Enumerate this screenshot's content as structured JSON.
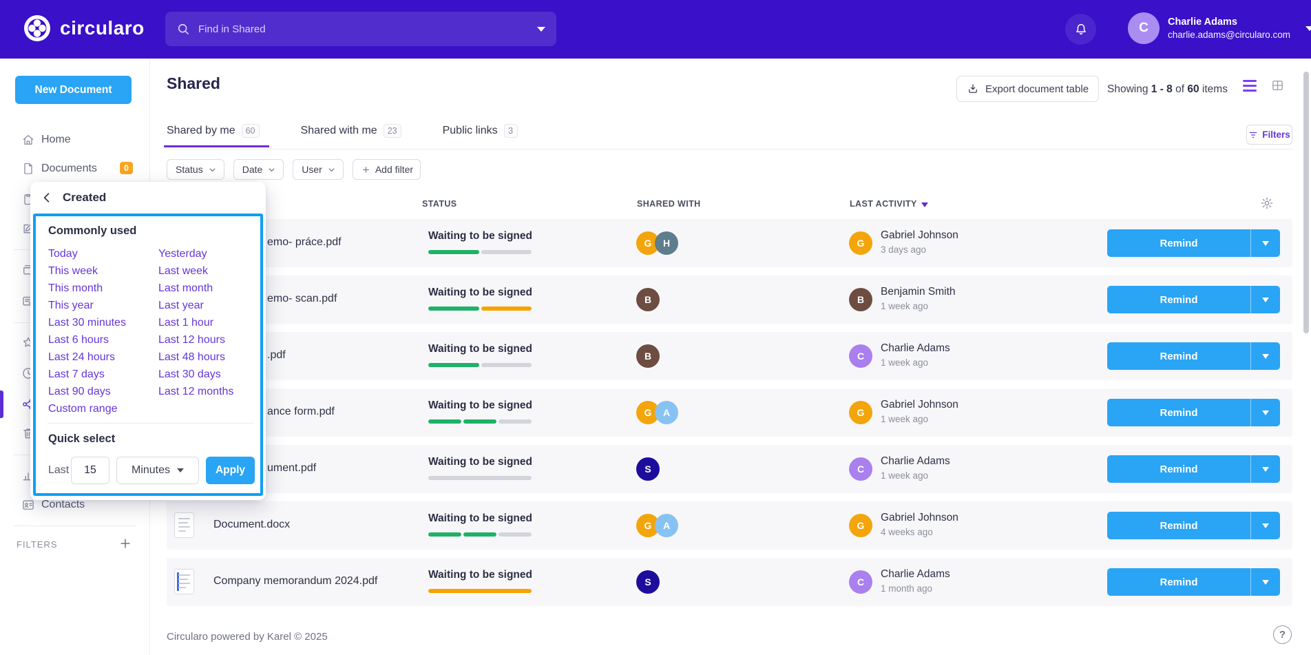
{
  "topbar": {
    "brand": "circularo",
    "search_placeholder": "Find in Shared",
    "user": {
      "initial": "C",
      "name": "Charlie Adams",
      "email": "charlie.adams@circularo.com"
    }
  },
  "sidebar": {
    "new_document": "New Document",
    "items": [
      {
        "icon": "home-icon",
        "label": "Home"
      },
      {
        "icon": "document-icon",
        "label": "Documents",
        "badge": "0"
      },
      {
        "icon": "clipboard-icon"
      },
      {
        "icon": "edit-icon"
      },
      {
        "divider": true
      },
      {
        "icon": "cards-icon"
      },
      {
        "icon": "card-at-icon"
      },
      {
        "divider": true
      },
      {
        "icon": "star-icon"
      },
      {
        "icon": "clock-icon"
      },
      {
        "icon": "share-icon",
        "active": true
      },
      {
        "icon": "trash-icon"
      },
      {
        "divider": true
      },
      {
        "icon": "chart-icon"
      },
      {
        "icon": "contacts-icon",
        "label": "Contacts"
      },
      {
        "divider": true
      }
    ],
    "filters_label": "FILTERS"
  },
  "page": {
    "title": "Shared",
    "export_label": "Export document table",
    "showing": {
      "prefix": "Showing",
      "range": "1 - 8",
      "of": "of",
      "total": "60",
      "suffix": "items"
    },
    "tabs": [
      {
        "label": "Shared by me",
        "count": "60",
        "active": true
      },
      {
        "label": "Shared with me",
        "count": "23",
        "active": false
      },
      {
        "label": "Public links",
        "count": "3",
        "active": false
      }
    ],
    "filters_button": "Filters",
    "filter_chips": [
      {
        "label": "Status"
      },
      {
        "label": "Date"
      },
      {
        "label": "User"
      }
    ],
    "add_filter_label": "Add filter"
  },
  "popup": {
    "title": "Created",
    "commonly_used": "Commonly used",
    "col1": [
      "Today",
      "This week",
      "This month",
      "This year",
      "Last 30 minutes",
      "Last 6 hours",
      "Last 24 hours",
      "Last 7 days",
      "Last 90 days",
      "Custom range"
    ],
    "col2": [
      "Yesterday",
      "Last week",
      "Last month",
      "Last year",
      "Last 1 hour",
      "Last 12 hours",
      "Last 48 hours",
      "Last 30 days",
      "Last 12 months"
    ],
    "quick_select": "Quick select",
    "last_label": "Last",
    "amount": "15",
    "unit": "Minutes",
    "apply_label": "Apply"
  },
  "table": {
    "headers": {
      "status": "STATUS",
      "shared_with": "SHARED WITH",
      "last_activity": "LAST ACTIVITY"
    },
    "status_colors": {
      "green": "#1fb168",
      "orange": "#f7a300",
      "gray": "#d3d5db"
    },
    "avatar_colors": {
      "gold": "#f3a50b",
      "slate": "#5e7d8d",
      "brown": "#6d4c41",
      "sky": "#87c3f2",
      "navy": "#1d0d9c",
      "purple": "#a980ee"
    },
    "rows": [
      {
        "name": "emo- práce.pdf",
        "icon": null,
        "status": "Waiting to be signed",
        "progress": [
          "green",
          "gray"
        ],
        "shared": [
          {
            "initial": "G",
            "color": "gold"
          },
          {
            "initial": "H",
            "color": "slate"
          }
        ],
        "activity": {
          "initial": "G",
          "color": "gold",
          "name": "Gabriel Johnson",
          "time": "3 days ago"
        },
        "action": "Remind"
      },
      {
        "name": "emo- scan.pdf",
        "icon": null,
        "status": "Waiting to be signed",
        "progress": [
          "green",
          "orange"
        ],
        "shared": [
          {
            "initial": "B",
            "color": "brown"
          }
        ],
        "activity": {
          "initial": "B",
          "color": "brown",
          "name": "Benjamin Smith",
          "time": "1 week ago"
        },
        "action": "Remind"
      },
      {
        "name": ".pdf",
        "icon": null,
        "status": "Waiting to be signed",
        "progress": [
          "green",
          "gray"
        ],
        "shared": [
          {
            "initial": "B",
            "color": "brown"
          }
        ],
        "activity": {
          "initial": "C",
          "color": "purple",
          "name": "Charlie Adams",
          "time": "1 week ago"
        },
        "action": "Remind"
      },
      {
        "name": "ance form.pdf",
        "icon": null,
        "status": "Waiting to be signed",
        "progress": [
          "green",
          "green",
          "gray"
        ],
        "shared": [
          {
            "initial": "G",
            "color": "gold"
          },
          {
            "initial": "A",
            "color": "sky"
          }
        ],
        "activity": {
          "initial": "G",
          "color": "gold",
          "name": "Gabriel Johnson",
          "time": "1 week ago"
        },
        "action": "Remind"
      },
      {
        "name": "ument.pdf",
        "icon": null,
        "status": "Waiting to be signed",
        "progress": [
          "gray"
        ],
        "shared": [
          {
            "initial": "S",
            "color": "navy"
          }
        ],
        "activity": {
          "initial": "C",
          "color": "purple",
          "name": "Charlie Adams",
          "time": "1 week ago"
        },
        "action": "Remind"
      },
      {
        "name": "Document.docx",
        "icon": "docx",
        "status": "Waiting to be signed",
        "progress": [
          "green",
          "green",
          "gray"
        ],
        "shared": [
          {
            "initial": "G",
            "color": "gold"
          },
          {
            "initial": "A",
            "color": "sky"
          }
        ],
        "activity": {
          "initial": "G",
          "color": "gold",
          "name": "Gabriel Johnson",
          "time": "4 weeks ago"
        },
        "action": "Remind"
      },
      {
        "name": "Company memorandum 2024.pdf",
        "icon": "pdf",
        "status": "Waiting to be signed",
        "progress": [
          "orange"
        ],
        "shared": [
          {
            "initial": "S",
            "color": "navy"
          }
        ],
        "activity": {
          "initial": "C",
          "color": "purple",
          "name": "Charlie Adams",
          "time": "1 month ago"
        },
        "action": "Remind"
      }
    ]
  },
  "footer": {
    "text": "Circularo powered by Karel © 2025",
    "help": "?"
  }
}
